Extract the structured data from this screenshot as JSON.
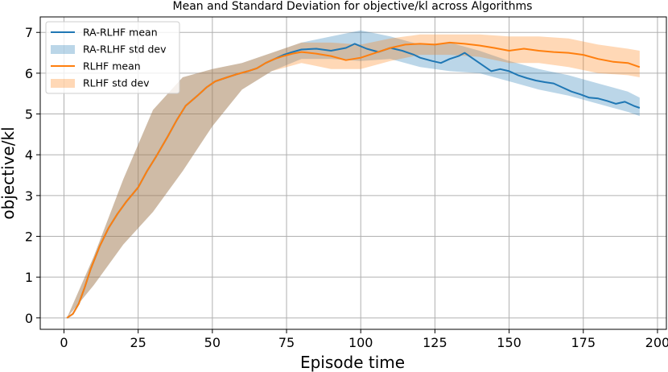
{
  "chart_data": {
    "type": "line",
    "title": "Mean and Standard Deviation for objective/kl across Algorithms",
    "xlabel": "Episode time",
    "ylabel": "objective/kl",
    "xlim": [
      -8,
      203
    ],
    "ylim": [
      -0.28,
      7.38
    ],
    "xticks": [
      0,
      25,
      50,
      75,
      100,
      125,
      150,
      175,
      200
    ],
    "yticks": [
      0,
      1,
      2,
      3,
      4,
      5,
      6,
      7
    ],
    "grid": true,
    "legend_position": "top-left",
    "colors": {
      "ra_rlhf": "#1f77b4",
      "rlhf": "#ff7f0e",
      "ra_rlhf_band": "#1f77b4",
      "rlhf_band": "#ff7f0e"
    },
    "series": [
      {
        "name": "RA-RLHF mean",
        "kind": "line",
        "color": "#1f77b4",
        "x": [
          1,
          3,
          5,
          7,
          9,
          12,
          15,
          18,
          21,
          25,
          28,
          31,
          35,
          38,
          41,
          45,
          48,
          51,
          55,
          58,
          62,
          65,
          68,
          71,
          74,
          77,
          80,
          85,
          90,
          95,
          98,
          102,
          106,
          110,
          114,
          118,
          120,
          124,
          127,
          130,
          133,
          135,
          138,
          141,
          144,
          147,
          150,
          153,
          156,
          159,
          162,
          165,
          168,
          171,
          174,
          177,
          180,
          183,
          186,
          189,
          192,
          194
        ],
        "values": [
          0.0,
          0.1,
          0.35,
          0.75,
          1.2,
          1.75,
          2.2,
          2.55,
          2.85,
          3.2,
          3.6,
          3.95,
          4.45,
          4.85,
          5.2,
          5.45,
          5.65,
          5.8,
          5.9,
          5.97,
          6.05,
          6.12,
          6.25,
          6.35,
          6.45,
          6.52,
          6.58,
          6.6,
          6.55,
          6.62,
          6.72,
          6.6,
          6.52,
          6.62,
          6.55,
          6.45,
          6.38,
          6.3,
          6.25,
          6.35,
          6.42,
          6.5,
          6.35,
          6.2,
          6.05,
          6.1,
          6.05,
          5.95,
          5.88,
          5.82,
          5.78,
          5.75,
          5.65,
          5.55,
          5.48,
          5.4,
          5.38,
          5.32,
          5.25,
          5.3,
          5.2,
          5.15
        ]
      },
      {
        "name": "RA-RLHF std dev",
        "kind": "band",
        "color": "#1f77b4",
        "x": [
          1,
          10,
          20,
          30,
          40,
          50,
          60,
          70,
          80,
          90,
          100,
          110,
          120,
          130,
          140,
          150,
          160,
          170,
          180,
          190,
          194
        ],
        "lower": [
          0.0,
          0.8,
          1.8,
          2.6,
          3.6,
          4.7,
          5.6,
          6.05,
          6.35,
          6.35,
          6.3,
          6.35,
          6.15,
          6.05,
          6.0,
          5.8,
          5.6,
          5.45,
          5.25,
          5.05,
          4.95
        ],
        "upper": [
          0.0,
          1.5,
          3.4,
          5.1,
          5.9,
          6.1,
          6.25,
          6.5,
          6.75,
          6.9,
          7.05,
          6.9,
          6.7,
          6.75,
          6.55,
          6.3,
          6.1,
          5.95,
          5.75,
          5.55,
          5.4
        ]
      },
      {
        "name": "RLHF mean",
        "kind": "line",
        "color": "#ff7f0e",
        "x": [
          1,
          3,
          5,
          7,
          9,
          12,
          15,
          18,
          21,
          25,
          28,
          31,
          35,
          38,
          41,
          45,
          48,
          51,
          55,
          58,
          62,
          65,
          68,
          71,
          74,
          77,
          80,
          85,
          90,
          95,
          100,
          105,
          110,
          115,
          120,
          125,
          130,
          135,
          140,
          145,
          150,
          155,
          160,
          165,
          170,
          175,
          180,
          185,
          190,
          194
        ],
        "values": [
          0.0,
          0.1,
          0.35,
          0.75,
          1.2,
          1.75,
          2.2,
          2.55,
          2.85,
          3.2,
          3.6,
          3.95,
          4.45,
          4.85,
          5.2,
          5.45,
          5.65,
          5.8,
          5.9,
          5.97,
          6.05,
          6.12,
          6.25,
          6.35,
          6.42,
          6.48,
          6.52,
          6.48,
          6.42,
          6.32,
          6.38,
          6.5,
          6.62,
          6.7,
          6.72,
          6.7,
          6.75,
          6.72,
          6.68,
          6.62,
          6.55,
          6.6,
          6.55,
          6.52,
          6.5,
          6.45,
          6.35,
          6.28,
          6.25,
          6.15
        ]
      },
      {
        "name": "RLHF std dev",
        "kind": "band",
        "color": "#ff7f0e",
        "x": [
          1,
          10,
          20,
          30,
          40,
          50,
          60,
          70,
          80,
          90,
          100,
          110,
          120,
          130,
          140,
          150,
          160,
          170,
          180,
          190,
          194
        ],
        "lower": [
          0.0,
          0.8,
          1.8,
          2.6,
          3.6,
          4.7,
          5.6,
          6.05,
          6.25,
          6.1,
          6.1,
          6.3,
          6.45,
          6.45,
          6.4,
          6.25,
          6.25,
          6.15,
          6.0,
          5.95,
          5.9
        ],
        "upper": [
          0.0,
          1.5,
          3.4,
          5.1,
          5.9,
          6.1,
          6.25,
          6.5,
          6.75,
          6.75,
          6.7,
          6.85,
          6.95,
          6.95,
          6.95,
          6.9,
          6.9,
          6.85,
          6.7,
          6.6,
          6.55
        ]
      }
    ]
  }
}
